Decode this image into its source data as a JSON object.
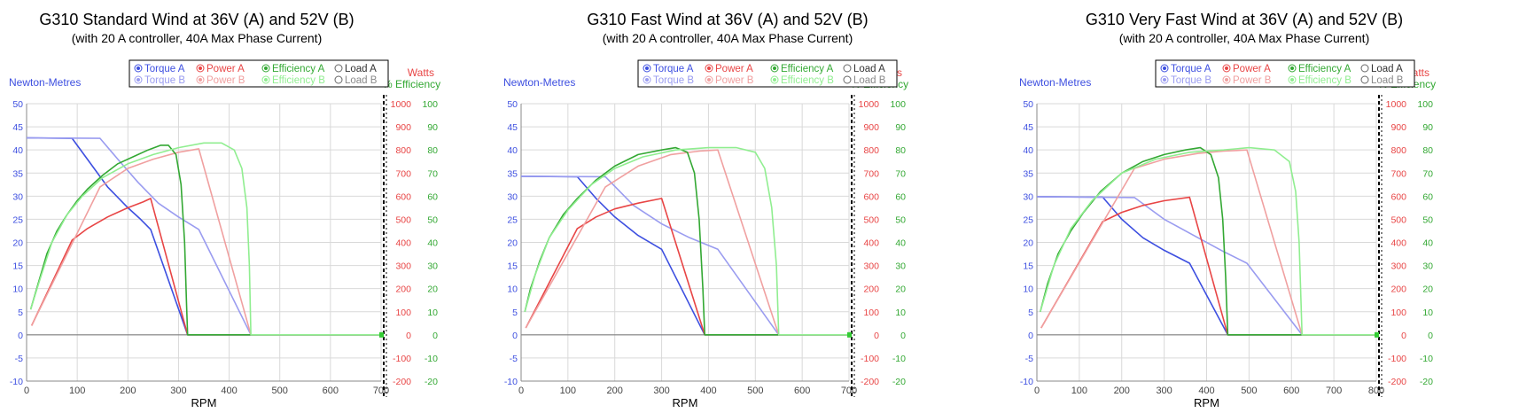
{
  "chart_data": [
    {
      "type": "line",
      "title": "G310 Standard Wind at 36V (A) and 52V (B)",
      "subtitle": "(with 20 A controller, 40A Max Phase Current)",
      "xlabel": "RPM",
      "ylabel_left": "Newton-Metres",
      "ylabel_power": "Watts",
      "ylabel_eff": "% Efficiency",
      "xlim": [
        0,
        700
      ],
      "xticks": [
        0,
        100,
        200,
        300,
        400,
        500,
        600,
        700
      ],
      "ylim_torque": [
        -10,
        50
      ],
      "ylim_power": [
        -200,
        1000
      ],
      "ylim_eff": [
        -20,
        100
      ],
      "grid": true,
      "legend_position": "top-center",
      "legend": [
        "Torque A",
        "Power A",
        "Efficiency A",
        "Load A",
        "Torque B",
        "Power B",
        "Efficiency B",
        "Load B"
      ],
      "series": [
        {
          "name": "Torque A",
          "axis": "torque",
          "color": "#3d4fe0",
          "points": [
            [
              0,
              42.6
            ],
            [
              90,
              42.5
            ],
            [
              120,
              38
            ],
            [
              160,
              32
            ],
            [
              200,
              27.5
            ],
            [
              225,
              25
            ],
            [
              245,
              22.8
            ],
            [
              318,
              0
            ],
            [
              700,
              0
            ]
          ]
        },
        {
          "name": "Torque B",
          "axis": "torque",
          "color": "#9a9cf0",
          "points": [
            [
              0,
              42.6
            ],
            [
              145,
              42.5
            ],
            [
              180,
              38
            ],
            [
              220,
              33
            ],
            [
              260,
              28.5
            ],
            [
              300,
              25.5
            ],
            [
              340,
              22.8
            ],
            [
              443,
              0
            ],
            [
              700,
              0
            ]
          ]
        },
        {
          "name": "Power A",
          "axis": "power",
          "color": "#e84545",
          "points": [
            [
              10,
              40
            ],
            [
              90,
              410
            ],
            [
              120,
              460
            ],
            [
              160,
              510
            ],
            [
              200,
              550
            ],
            [
              230,
              575
            ],
            [
              245,
              590
            ],
            [
              318,
              0
            ],
            [
              700,
              0
            ]
          ]
        },
        {
          "name": "Power B",
          "axis": "power",
          "color": "#f0a0a0",
          "points": [
            [
              10,
              40
            ],
            [
              145,
              640
            ],
            [
              200,
              720
            ],
            [
              250,
              760
            ],
            [
              300,
              790
            ],
            [
              340,
              805
            ],
            [
              443,
              0
            ],
            [
              700,
              0
            ]
          ]
        },
        {
          "name": "Efficiency A",
          "axis": "eff",
          "color": "#33a833",
          "points": [
            [
              8,
              11
            ],
            [
              20,
              20
            ],
            [
              40,
              35
            ],
            [
              60,
              45
            ],
            [
              80,
              52
            ],
            [
              100,
              58
            ],
            [
              120,
              63
            ],
            [
              150,
              69
            ],
            [
              180,
              74
            ],
            [
              210,
              77
            ],
            [
              240,
              80
            ],
            [
              265,
              82
            ],
            [
              280,
              82
            ],
            [
              295,
              78
            ],
            [
              305,
              65
            ],
            [
              312,
              40
            ],
            [
              316,
              12
            ],
            [
              318,
              0
            ],
            [
              700,
              0
            ]
          ]
        },
        {
          "name": "Efficiency B",
          "axis": "eff",
          "color": "#90ee90",
          "points": [
            [
              8,
              11
            ],
            [
              25,
              23
            ],
            [
              50,
              40
            ],
            [
              80,
              52
            ],
            [
              110,
              60
            ],
            [
              150,
              68
            ],
            [
              200,
              74
            ],
            [
              250,
              78
            ],
            [
              300,
              81
            ],
            [
              350,
              83
            ],
            [
              385,
              83
            ],
            [
              410,
              80
            ],
            [
              425,
              72
            ],
            [
              435,
              55
            ],
            [
              440,
              30
            ],
            [
              443,
              0
            ],
            [
              700,
              0
            ]
          ]
        }
      ]
    },
    {
      "type": "line",
      "title": "G310 Fast Wind at 36V (A) and 52V (B)",
      "subtitle": "(with 20 A controller, 40A Max Phase Current)",
      "xlabel": "RPM",
      "ylabel_left": "Newton-Metres",
      "ylabel_power": "Watts",
      "ylabel_eff": "% Efficiency",
      "xlim": [
        0,
        700
      ],
      "xticks": [
        0,
        100,
        200,
        300,
        400,
        500,
        600,
        700
      ],
      "ylim_torque": [
        -10,
        50
      ],
      "ylim_power": [
        -200,
        1000
      ],
      "ylim_eff": [
        -20,
        100
      ],
      "grid": true,
      "legend_position": "top-center",
      "legend": [
        "Torque A",
        "Power A",
        "Efficiency A",
        "Load A",
        "Torque B",
        "Power B",
        "Efficiency B",
        "Load B"
      ],
      "series": [
        {
          "name": "Torque A",
          "axis": "torque",
          "color": "#3d4fe0",
          "points": [
            [
              0,
              34.3
            ],
            [
              120,
              34.2
            ],
            [
              160,
              29.5
            ],
            [
              200,
              25.5
            ],
            [
              250,
              21.5
            ],
            [
              300,
              18.5
            ],
            [
              392,
              0
            ],
            [
              700,
              0
            ]
          ]
        },
        {
          "name": "Torque B",
          "axis": "torque",
          "color": "#9a9cf0",
          "points": [
            [
              0,
              34.3
            ],
            [
              180,
              34.2
            ],
            [
              240,
              28
            ],
            [
              300,
              24
            ],
            [
              360,
              21
            ],
            [
              420,
              18.5
            ],
            [
              550,
              0
            ],
            [
              700,
              0
            ]
          ]
        },
        {
          "name": "Power A",
          "axis": "power",
          "color": "#e84545",
          "points": [
            [
              10,
              30
            ],
            [
              120,
              460
            ],
            [
              160,
              510
            ],
            [
              200,
              545
            ],
            [
              250,
              570
            ],
            [
              300,
              590
            ],
            [
              392,
              0
            ],
            [
              700,
              0
            ]
          ]
        },
        {
          "name": "Power B",
          "axis": "power",
          "color": "#f0a0a0",
          "points": [
            [
              10,
              30
            ],
            [
              180,
              640
            ],
            [
              250,
              730
            ],
            [
              320,
              780
            ],
            [
              380,
              795
            ],
            [
              420,
              800
            ],
            [
              550,
              0
            ],
            [
              700,
              0
            ]
          ]
        },
        {
          "name": "Efficiency A",
          "axis": "eff",
          "color": "#33a833",
          "points": [
            [
              8,
              10
            ],
            [
              20,
              20
            ],
            [
              40,
              32
            ],
            [
              60,
              42
            ],
            [
              90,
              52
            ],
            [
              120,
              59
            ],
            [
              160,
              67
            ],
            [
              200,
              73
            ],
            [
              250,
              78
            ],
            [
              300,
              80
            ],
            [
              330,
              81
            ],
            [
              355,
              79
            ],
            [
              370,
              70
            ],
            [
              380,
              50
            ],
            [
              388,
              20
            ],
            [
              392,
              0
            ],
            [
              700,
              0
            ]
          ]
        },
        {
          "name": "Efficiency B",
          "axis": "eff",
          "color": "#90ee90",
          "points": [
            [
              8,
              10
            ],
            [
              30,
              26
            ],
            [
              60,
              42
            ],
            [
              100,
              54
            ],
            [
              150,
              65
            ],
            [
              200,
              72
            ],
            [
              260,
              77
            ],
            [
              330,
              80
            ],
            [
              400,
              81
            ],
            [
              460,
              81
            ],
            [
              500,
              79
            ],
            [
              520,
              72
            ],
            [
              535,
              55
            ],
            [
              545,
              30
            ],
            [
              550,
              0
            ],
            [
              700,
              0
            ]
          ]
        }
      ]
    },
    {
      "type": "line",
      "title": "G310 Very Fast Wind at 36V (A) and 52V (B)",
      "subtitle": "(with 20 A controller, 40A Max Phase Current)",
      "xlabel": "RPM",
      "ylabel_left": "Newton-Metres",
      "ylabel_power": "Watts",
      "ylabel_eff": "% Efficiency",
      "xlim": [
        0,
        800
      ],
      "xticks": [
        0,
        100,
        200,
        300,
        400,
        500,
        600,
        700,
        800
      ],
      "ylim_torque": [
        -10,
        50
      ],
      "ylim_power": [
        -200,
        1000
      ],
      "ylim_eff": [
        -20,
        100
      ],
      "grid": true,
      "legend_position": "top-center",
      "legend": [
        "Torque A",
        "Power A",
        "Efficiency A",
        "Load A",
        "Torque B",
        "Power B",
        "Efficiency B",
        "Load B"
      ],
      "series": [
        {
          "name": "Torque A",
          "axis": "torque",
          "color": "#3d4fe0",
          "points": [
            [
              0,
              29.9
            ],
            [
              155,
              29.8
            ],
            [
              200,
              25
            ],
            [
              250,
              21
            ],
            [
              300,
              18.3
            ],
            [
              360,
              15.5
            ],
            [
              450,
              0
            ],
            [
              800,
              0
            ]
          ]
        },
        {
          "name": "Torque B",
          "axis": "torque",
          "color": "#9a9cf0",
          "points": [
            [
              0,
              29.9
            ],
            [
              230,
              29.7
            ],
            [
              300,
              25
            ],
            [
              380,
              21
            ],
            [
              440,
              18
            ],
            [
              495,
              15.5
            ],
            [
              625,
              0
            ],
            [
              800,
              0
            ]
          ]
        },
        {
          "name": "Power A",
          "axis": "power",
          "color": "#e84545",
          "points": [
            [
              10,
              30
            ],
            [
              155,
              490
            ],
            [
              200,
              530
            ],
            [
              250,
              560
            ],
            [
              300,
              580
            ],
            [
              360,
              595
            ],
            [
              450,
              0
            ],
            [
              800,
              0
            ]
          ]
        },
        {
          "name": "Power B",
          "axis": "power",
          "color": "#f0a0a0",
          "points": [
            [
              10,
              30
            ],
            [
              230,
              720
            ],
            [
              300,
              760
            ],
            [
              380,
              785
            ],
            [
              440,
              795
            ],
            [
              495,
              800
            ],
            [
              625,
              0
            ],
            [
              800,
              0
            ]
          ]
        },
        {
          "name": "Efficiency A",
          "axis": "eff",
          "color": "#33a833",
          "points": [
            [
              8,
              10
            ],
            [
              25,
              22
            ],
            [
              50,
              35
            ],
            [
              80,
              45
            ],
            [
              110,
              53
            ],
            [
              150,
              62
            ],
            [
              200,
              70
            ],
            [
              250,
              75
            ],
            [
              300,
              78
            ],
            [
              350,
              80
            ],
            [
              385,
              81
            ],
            [
              410,
              78
            ],
            [
              428,
              68
            ],
            [
              438,
              50
            ],
            [
              445,
              25
            ],
            [
              450,
              0
            ],
            [
              800,
              0
            ]
          ]
        },
        {
          "name": "Efficiency B",
          "axis": "eff",
          "color": "#90ee90",
          "points": [
            [
              8,
              10
            ],
            [
              40,
              30
            ],
            [
              80,
              46
            ],
            [
              130,
              58
            ],
            [
              200,
              70
            ],
            [
              280,
              76
            ],
            [
              360,
              79
            ],
            [
              440,
              80
            ],
            [
              500,
              81
            ],
            [
              560,
              80
            ],
            [
              595,
              75
            ],
            [
              610,
              62
            ],
            [
              618,
              40
            ],
            [
              625,
              0
            ],
            [
              800,
              0
            ]
          ]
        }
      ]
    }
  ]
}
